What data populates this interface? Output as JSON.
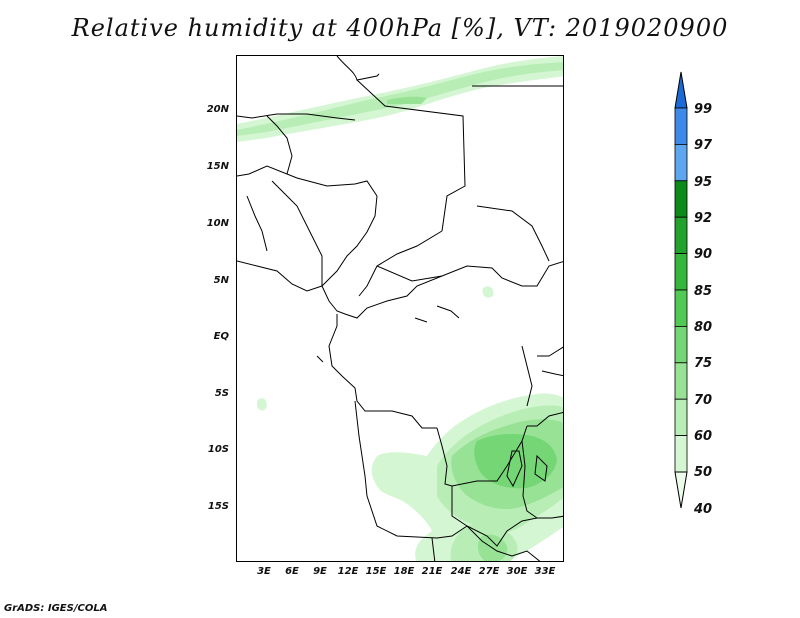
{
  "title": "Relative humidity at 400hPa [%], VT: 2019020900",
  "credit": "GrADS: IGES/COLA",
  "map": {
    "lat_ticks": [
      "20N",
      "15N",
      "10N",
      "5N",
      "EQ",
      "5S",
      "10S",
      "15S"
    ],
    "lon_ticks": [
      "3E",
      "6E",
      "9E",
      "12E",
      "15E",
      "18E",
      "21E",
      "24E",
      "27E",
      "30E",
      "33E"
    ]
  },
  "colorbar": {
    "levels": [
      "99",
      "97",
      "95",
      "92",
      "90",
      "85",
      "80",
      "75",
      "70",
      "60",
      "50",
      "40"
    ],
    "colors": [
      "#1c6ad6",
      "#3e8ae8",
      "#5ca7f0",
      "#0e8a1a",
      "#22a22c",
      "#36b63c",
      "#52c855",
      "#74d674",
      "#98e296",
      "#b8eeb6",
      "#d4f6d2",
      "#ecfcea"
    ]
  },
  "colors": {
    "background": "#ffffff",
    "border": "#000000",
    "humidity_light": "#d4f6d2",
    "humidity_mid": "#98e296",
    "humidity_high": "#52c855"
  }
}
